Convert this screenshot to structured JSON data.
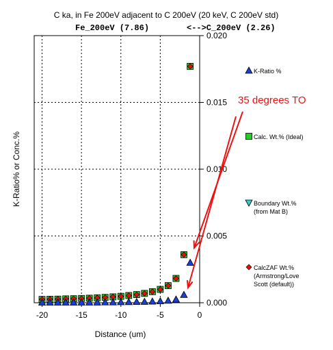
{
  "chart_data": {
    "type": "scatter",
    "title": "C ka, in Fe 200eV adjacent to C 200eV (20 keV, C 200eV std)",
    "subtitle_left": "Fe_200eV (7.86)",
    "subtitle_right": "<-->C_200eV (2.26)",
    "xlabel": "Distance (um)",
    "ylabel": "K-Ratio% or Conc.%",
    "xlim": [
      -21,
      0
    ],
    "ylim": [
      0,
      0.02
    ],
    "xticks": [
      -20,
      -15,
      -10,
      -5,
      0
    ],
    "xtick_labels": [
      "-20",
      "-15",
      "-10",
      "-5",
      "0"
    ],
    "yticks": [
      0,
      0.005,
      0.01,
      0.015,
      0.02
    ],
    "ytick_labels": [
      "0.000",
      "0.005",
      "0.010",
      "0.015",
      "0.020"
    ],
    "grid": true,
    "legend_placement": "right",
    "series": [
      {
        "name": "K-Ratio %",
        "marker": "triangle-up",
        "color": "#1a3fd6",
        "x": [
          -20,
          -19,
          -18,
          -17,
          -16,
          -15,
          -14,
          -13,
          -12,
          -11,
          -10,
          -9,
          -8,
          -7,
          -6,
          -5,
          -4,
          -3,
          -2,
          -1.2
        ],
        "y": [
          2e-05,
          2e-05,
          2e-05,
          2e-05,
          2e-05,
          3e-05,
          3e-05,
          3e-05,
          4e-05,
          4e-05,
          5e-05,
          6e-05,
          7e-05,
          8e-05,
          0.0001,
          0.00012,
          0.00016,
          0.00025,
          0.0006,
          0.003
        ]
      },
      {
        "name": "Calc. Wt.% (Ideal)",
        "marker": "square",
        "color": "#22cc22",
        "x": [
          -20,
          -19,
          -18,
          -17,
          -16,
          -15,
          -14,
          -13,
          -12,
          -11,
          -10,
          -9,
          -8,
          -7,
          -6,
          -5,
          -4,
          -3,
          -2,
          -1.2
        ],
        "y": [
          0.00025,
          0.00026,
          0.00027,
          0.00029,
          0.0003,
          0.00032,
          0.00034,
          0.00037,
          0.0004,
          0.00044,
          0.00048,
          0.00054,
          0.00061,
          0.0007,
          0.00083,
          0.001,
          0.00128,
          0.00182,
          0.0036,
          0.0177
        ]
      },
      {
        "name": "Boundary Wt.%",
        "name_line2": "(from Mat B)",
        "marker": "triangle-down",
        "color": "#33cccc",
        "x": [],
        "y": []
      },
      {
        "name": "CalcZAF Wt.%",
        "name_line2": "(Armstrong/Love",
        "name_line3": "Scott (default))",
        "marker": "diamond",
        "color": "#dd1111",
        "x": [
          -20,
          -19,
          -18,
          -17,
          -16,
          -15,
          -14,
          -13,
          -12,
          -11,
          -10,
          -9,
          -8,
          -7,
          -6,
          -5,
          -4,
          -3,
          -2,
          -1.2
        ],
        "y": [
          0.00025,
          0.00026,
          0.00027,
          0.00029,
          0.0003,
          0.00032,
          0.00034,
          0.00037,
          0.0004,
          0.00044,
          0.00048,
          0.00054,
          0.00061,
          0.0007,
          0.00083,
          0.001,
          0.00128,
          0.00182,
          0.0036,
          0.0177
        ]
      }
    ],
    "annotation": {
      "text": "35 degrees TO",
      "color": "#ee1111"
    }
  }
}
